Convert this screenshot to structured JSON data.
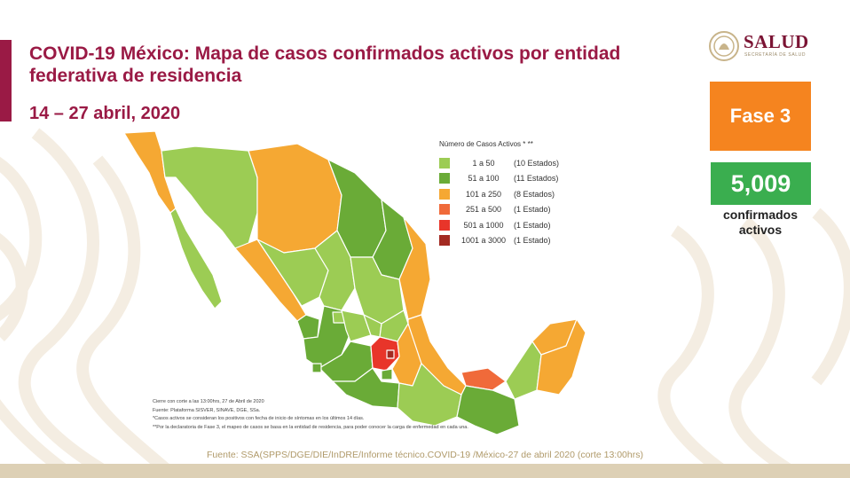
{
  "header": {
    "title": "COVID-19 México: Mapa de casos confirmados activos por entidad federativa de residencia",
    "date_range": "14 – 27 abril, 2020"
  },
  "logo": {
    "name": "SALUD",
    "subtitle": "SECRETARÍA DE SALUD",
    "icon": "mexico-eagle-seal-icon"
  },
  "phase": {
    "label": "Fase 3",
    "color": "#f5841f"
  },
  "active_cases": {
    "value": "5,009",
    "label": "confirmados activos",
    "color": "#3aae4f"
  },
  "legend": {
    "title": "Número de Casos Activos * **",
    "items": [
      {
        "range": "1 a 50",
        "count": "(10 Estados)",
        "color": "#9ccc54"
      },
      {
        "range": "51 a 100",
        "count": "(11 Estados)",
        "color": "#6aab37"
      },
      {
        "range": "101 a 250",
        "count": "(8 Estados)",
        "color": "#f5a833"
      },
      {
        "range": "251 a 500",
        "count": "(1 Estado)",
        "color": "#f06a3a"
      },
      {
        "range": "501 a 1000",
        "count": "(1 Estado)",
        "color": "#e8352a"
      },
      {
        "range": "1001 a 3000",
        "count": "(1 Estado)",
        "color": "#a32a22"
      }
    ]
  },
  "notes": [
    "Cierre con corte a las 13:00hrs, 27 de Abril de 2020",
    "Fuente: Plataforma SISVER, SINAVE, DGE, SSa.",
    "*Casos activos se consideran los positivos con fecha de inicio de síntomas en los últimos 14 días.",
    "**Por la declaratoria de Fase 3, el mapeo de casos se basa en la entidad de residencia, para poder conocer la carga de enfermedad en cada una."
  ],
  "source": "Fuente: SSA(SPPS/DGE/DIE/InDRE/Informe técnico.COVID-19 /México-27 de abril 2020 (corte 13:00hrs)",
  "colors": {
    "brand": "#9a1a45",
    "footer": "#ddd0b5",
    "source_text": "#b09a6a"
  }
}
